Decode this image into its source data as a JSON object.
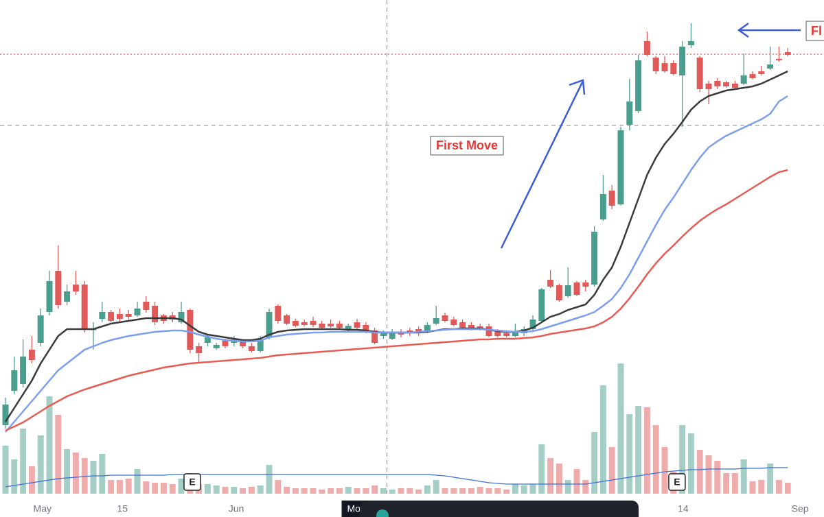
{
  "chart_data": {
    "type": "candlestick",
    "xlim": [
      -0.625,
      93.125
    ],
    "ylim": [
      0,
      754
    ],
    "volume_lim": [
      0,
      200
    ],
    "xticks": [
      {
        "value": 4.2,
        "label": "May"
      },
      {
        "value": 13.3,
        "label": "15"
      },
      {
        "value": 26.25,
        "label": "Jun"
      },
      {
        "value": 77.1,
        "label": "14"
      },
      {
        "value": 90.4,
        "label": "Sep"
      }
    ],
    "up_color": "#4a9e8e",
    "down_color": "#e05a5a",
    "candles": [
      [
        134,
        174,
        129,
        164
      ],
      [
        184,
        234,
        179,
        214
      ],
      [
        194,
        259,
        189,
        234
      ],
      [
        244,
        264,
        224,
        229
      ],
      [
        254,
        304,
        249,
        294
      ],
      [
        299,
        359,
        294,
        344
      ],
      [
        359,
        396,
        304,
        309
      ],
      [
        314,
        339,
        309,
        329
      ],
      [
        339,
        359,
        324,
        329
      ],
      [
        339,
        344,
        269,
        274
      ],
      [
        274,
        284,
        244,
        274
      ],
      [
        289,
        314,
        284,
        299
      ],
      [
        299,
        302,
        284,
        286
      ],
      [
        296,
        304,
        284,
        289
      ],
      [
        296,
        302,
        288,
        292
      ],
      [
        294,
        314,
        292,
        304
      ],
      [
        314,
        322,
        298,
        302
      ],
      [
        308,
        314,
        280,
        284
      ],
      [
        294,
        296,
        282,
        286
      ],
      [
        294,
        299,
        284,
        288
      ],
      [
        284,
        314,
        282,
        299
      ],
      [
        302,
        304,
        239,
        244
      ],
      [
        249,
        254,
        226,
        239
      ],
      [
        254,
        266,
        249,
        262
      ],
      [
        246,
        254,
        244,
        251
      ],
      [
        257,
        260,
        246,
        249
      ],
      [
        254,
        264,
        249,
        259
      ],
      [
        256,
        258,
        246,
        249
      ],
      [
        249,
        254,
        240,
        242
      ],
      [
        242,
        264,
        240,
        259
      ],
      [
        262,
        304,
        259,
        299
      ],
      [
        308,
        310,
        282,
        286
      ],
      [
        294,
        296,
        280,
        282
      ],
      [
        286,
        289,
        277,
        279
      ],
      [
        284,
        288,
        278,
        280
      ],
      [
        286,
        292,
        277,
        280
      ],
      [
        282,
        286,
        274,
        276
      ],
      [
        282,
        288,
        276,
        278
      ],
      [
        282,
        286,
        274,
        276
      ],
      [
        274,
        282,
        270,
        279
      ],
      [
        284,
        289,
        272,
        276
      ],
      [
        280,
        284,
        268,
        272
      ],
      [
        272,
        276,
        252,
        254
      ],
      [
        264,
        272,
        260,
        268
      ],
      [
        260,
        274,
        258,
        270
      ],
      [
        270,
        274,
        262,
        266
      ],
      [
        272,
        276,
        264,
        268
      ],
      [
        274,
        278,
        264,
        268
      ],
      [
        270,
        284,
        268,
        280
      ],
      [
        282,
        308,
        280,
        290
      ],
      [
        294,
        298,
        284,
        286
      ],
      [
        288,
        292,
        278,
        280
      ],
      [
        284,
        288,
        274,
        276
      ],
      [
        280,
        284,
        272,
        274
      ],
      [
        278,
        282,
        272,
        274
      ],
      [
        278,
        282,
        262,
        264
      ],
      [
        270,
        274,
        262,
        264
      ],
      [
        268,
        272,
        262,
        264
      ],
      [
        264,
        282,
        262,
        270
      ],
      [
        268,
        278,
        264,
        274
      ],
      [
        274,
        294,
        272,
        288
      ],
      [
        286,
        334,
        284,
        332
      ],
      [
        346,
        360,
        334,
        336
      ],
      [
        338,
        340,
        314,
        316
      ],
      [
        322,
        364,
        320,
        338
      ],
      [
        342,
        344,
        322,
        324
      ],
      [
        342,
        346,
        329,
        336
      ],
      [
        339,
        424,
        336,
        416
      ],
      [
        434,
        499,
        432,
        471
      ],
      [
        476,
        484,
        449,
        454
      ],
      [
        456,
        569,
        454,
        564
      ],
      [
        572,
        639,
        564,
        606
      ],
      [
        592,
        674,
        589,
        666
      ],
      [
        694,
        708,
        672,
        674
      ],
      [
        670,
        672,
        646,
        650
      ],
      [
        662,
        672,
        648,
        650
      ],
      [
        662,
        666,
        644,
        646
      ],
      [
        644,
        694,
        569,
        686
      ],
      [
        688,
        720,
        684,
        694
      ],
      [
        670,
        672,
        620,
        624
      ],
      [
        632,
        636,
        602,
        624
      ],
      [
        636,
        640,
        624,
        628
      ],
      [
        634,
        636,
        626,
        628
      ],
      [
        632,
        636,
        624,
        626
      ],
      [
        632,
        676,
        630,
        644
      ],
      [
        646,
        650,
        638,
        640
      ],
      [
        650,
        658,
        644,
        646
      ],
      [
        654,
        686,
        652,
        660
      ],
      [
        668,
        686,
        664,
        666
      ],
      [
        678,
        684,
        672,
        674
      ]
    ],
    "volume": [
      70,
      50,
      95,
      40,
      85,
      142,
      115,
      65,
      60,
      52,
      48,
      58,
      20,
      20,
      22,
      36,
      18,
      16,
      16,
      14,
      22,
      30,
      14,
      14,
      12,
      10,
      10,
      8,
      10,
      12,
      42,
      20,
      10,
      8,
      8,
      8,
      6,
      8,
      8,
      10,
      8,
      8,
      12,
      8,
      6,
      8,
      8,
      6,
      12,
      20,
      8,
      8,
      8,
      8,
      10,
      8,
      8,
      6,
      14,
      12,
      14,
      72,
      52,
      44,
      20,
      36,
      20,
      90,
      158,
      68,
      190,
      116,
      128,
      126,
      100,
      68,
      32,
      100,
      88,
      64,
      56,
      48,
      30,
      30,
      50,
      18,
      20,
      44,
      20,
      16
    ],
    "series": [
      {
        "color": "#3a3a3a",
        "values": [
          139,
          159,
          179,
          199,
          224,
          244,
          264,
          274,
          274,
          274,
          274,
          278,
          282,
          284,
          286,
          288,
          290,
          290,
          290,
          290,
          288,
          279,
          270,
          266,
          264,
          262,
          260,
          258,
          258,
          260,
          266,
          270,
          272,
          273,
          274,
          274,
          274,
          274,
          274,
          273,
          273,
          272,
          270,
          269,
          269,
          269,
          269,
          269,
          270,
          272,
          274,
          274,
          275,
          275,
          275,
          273,
          271,
          270,
          270,
          272,
          276,
          284,
          292,
          296,
          302,
          306,
          310,
          324,
          346,
          364,
          394,
          429,
          464,
          499,
          524,
          544,
          559,
          576,
          594,
          606,
          614,
          618,
          622,
          624,
          626,
          628,
          632,
          638,
          644,
          650
        ]
      },
      {
        "color": "#7b9ef0",
        "values": [
          124,
          139,
          154,
          169,
          184,
          199,
          214,
          224,
          234,
          244,
          249,
          254,
          258,
          261,
          264,
          266,
          268,
          270,
          271,
          272,
          272,
          270,
          266,
          263,
          260,
          258,
          257,
          256,
          256,
          257,
          262,
          264,
          266,
          267,
          268,
          269,
          269,
          270,
          270,
          270,
          270,
          270,
          269,
          269,
          269,
          269,
          269,
          270,
          271,
          272,
          273,
          274,
          274,
          274,
          274,
          273,
          272,
          271,
          270,
          270,
          271,
          274,
          278,
          282,
          286,
          290,
          294,
          299,
          308,
          318,
          334,
          354,
          378,
          402,
          426,
          448,
          466,
          486,
          506,
          524,
          539,
          548,
          556,
          562,
          568,
          574,
          580,
          588,
          606,
          614
        ]
      },
      {
        "color": "#e85a52",
        "values": [
          126,
          132,
          138,
          146,
          154,
          162,
          169,
          176,
          181,
          186,
          190,
          194,
          198,
          202,
          206,
          209,
          212,
          215,
          218,
          220,
          222,
          224,
          225,
          226,
          227,
          228,
          229,
          230,
          231,
          232,
          234,
          236,
          237,
          238,
          239,
          240,
          241,
          242,
          243,
          244,
          245,
          246,
          247,
          248,
          249,
          250,
          251,
          252,
          253,
          254,
          255,
          256,
          257,
          258,
          259,
          259,
          260,
          260,
          260,
          261,
          262,
          264,
          267,
          269,
          271,
          273,
          275,
          278,
          284,
          292,
          304,
          319,
          336,
          354,
          370,
          384,
          396,
          409,
          421,
          432,
          441,
          449,
          456,
          464,
          472,
          480,
          488,
          496,
          503,
          506
        ]
      }
    ],
    "volume_avg": {
      "color": "#3b6fd8",
      "values": [
        10,
        12,
        14,
        16,
        18,
        20,
        22,
        23,
        24,
        25,
        26,
        26,
        27,
        27,
        27,
        27,
        27,
        27,
        27,
        28,
        28,
        28,
        28,
        28,
        28,
        28,
        28,
        28,
        28,
        28,
        28,
        28,
        28,
        28,
        28,
        28,
        28,
        28,
        28,
        28,
        28,
        28,
        28,
        28,
        28,
        28,
        28,
        28,
        28,
        27,
        26,
        24,
        22,
        20,
        18,
        16,
        15,
        14,
        14,
        14,
        14,
        14,
        14,
        14,
        14,
        14,
        14,
        16,
        18,
        20,
        22,
        24,
        26,
        28,
        30,
        32,
        33,
        34,
        35,
        35,
        36,
        36,
        36,
        36,
        37,
        37,
        37,
        38,
        38,
        38
      ]
    },
    "hlines": [
      {
        "value": 675,
        "color": "#e53935",
        "style": "dotted"
      },
      {
        "value": 571,
        "color": "#888888",
        "style": "dashed"
      }
    ],
    "crosshair": {
      "x": 43.4,
      "label": "Mo"
    },
    "events": [
      {
        "x": 21.25,
        "label": "E"
      },
      {
        "x": 76.4,
        "label": "E"
      }
    ],
    "annotations": [
      "First Move",
      "Fl"
    ]
  }
}
